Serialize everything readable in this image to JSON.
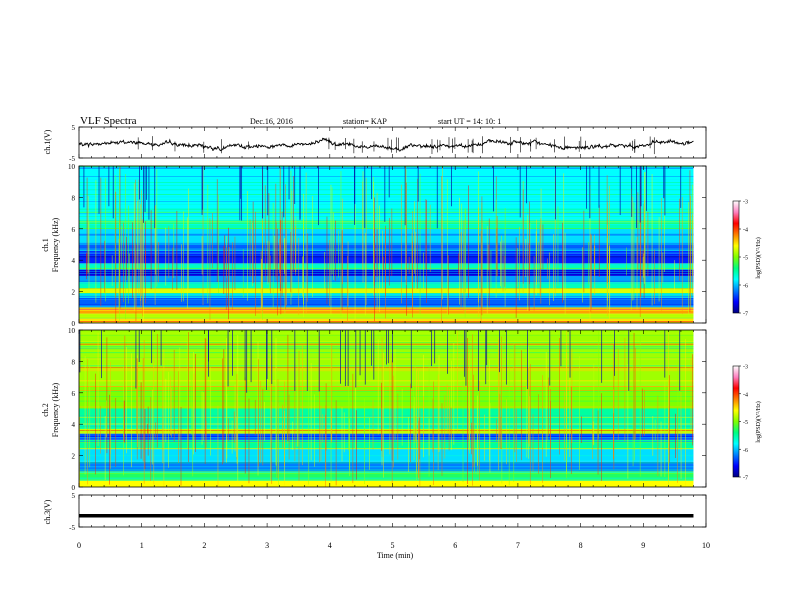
{
  "header": {
    "title": "VLF Spectra",
    "date": "Dec.16, 2016",
    "station": "station= KAP",
    "start": "start  UT =   14: 10: 1"
  },
  "chart_data": [
    {
      "type": "line",
      "name": "ch1-waveform",
      "ylabel": "ch.1(V)",
      "ylim": [
        -5,
        5
      ],
      "yticks": [
        "5",
        "-5"
      ],
      "xlim": [
        0,
        10
      ],
      "x_end": 9.8,
      "y_mean": -0.8,
      "y_spread": 1.2
    },
    {
      "type": "heatmap",
      "name": "ch1-spectrogram",
      "ylabel_line1": "ch.1",
      "ylabel_line2": "Frequency (kHz)",
      "ylim": [
        0,
        10
      ],
      "yticks": [
        "0",
        "2",
        "4",
        "6",
        "8",
        "10"
      ],
      "xlim": [
        0,
        10
      ],
      "x_end": 9.8,
      "bands": [
        {
          "f": [
            0.0,
            0.3
          ],
          "level": -4.5
        },
        {
          "f": [
            0.3,
            0.6
          ],
          "level": -4.8
        },
        {
          "f": [
            0.6,
            1.0
          ],
          "level": -4.3
        },
        {
          "f": [
            1.0,
            1.5
          ],
          "level": -6.3
        },
        {
          "f": [
            1.5,
            1.9
          ],
          "level": -5.9
        },
        {
          "f": [
            1.9,
            2.2
          ],
          "level": -4.7
        },
        {
          "f": [
            2.2,
            2.6
          ],
          "level": -5.6
        },
        {
          "f": [
            2.6,
            3.0
          ],
          "level": -6.1
        },
        {
          "f": [
            3.0,
            3.4
          ],
          "level": -6.7
        },
        {
          "f": [
            3.4,
            3.8
          ],
          "level": -5.6
        },
        {
          "f": [
            3.8,
            4.4
          ],
          "level": -6.5
        },
        {
          "f": [
            4.4,
            5.0
          ],
          "level": -6.3
        },
        {
          "f": [
            5.0,
            6.0
          ],
          "level": -5.9
        },
        {
          "f": [
            6.0,
            6.6
          ],
          "level": -5.6
        },
        {
          "f": [
            6.6,
            10.0
          ],
          "level": -5.8
        }
      ],
      "colorbar": {
        "label": "log(PSD)(V²/Hz)",
        "range": [
          -7,
          -3
        ],
        "ticks": [
          "-3",
          "-4",
          "-5",
          "-6",
          "-7"
        ]
      }
    },
    {
      "type": "heatmap",
      "name": "ch2-spectrogram",
      "ylabel_line1": "ch.2",
      "ylabel_line2": "Frequency (kHz)",
      "ylim": [
        0,
        10
      ],
      "yticks": [
        "0",
        "2",
        "4",
        "6",
        "8",
        "10"
      ],
      "xlim": [
        0,
        10
      ],
      "x_end": 9.8,
      "bands": [
        {
          "f": [
            0.0,
            0.4
          ],
          "level": -4.6
        },
        {
          "f": [
            0.4,
            1.0
          ],
          "level": -5.3
        },
        {
          "f": [
            1.0,
            1.6
          ],
          "level": -6.2
        },
        {
          "f": [
            1.6,
            2.4
          ],
          "level": -5.9
        },
        {
          "f": [
            2.4,
            3.0
          ],
          "level": -5.5
        },
        {
          "f": [
            3.0,
            3.4
          ],
          "level": -6.3
        },
        {
          "f": [
            3.4,
            3.7
          ],
          "level": -4.8
        },
        {
          "f": [
            3.7,
            5.0
          ],
          "level": -5.5
        },
        {
          "f": [
            5.0,
            6.5
          ],
          "level": -5.0
        },
        {
          "f": [
            6.5,
            10.0
          ],
          "level": -4.9
        }
      ],
      "colorbar": {
        "label": "log(PSD)(V²/Hz)",
        "range": [
          -7,
          -3
        ],
        "ticks": [
          "-3",
          "-4",
          "-5",
          "-6",
          "-7"
        ]
      }
    },
    {
      "type": "line",
      "name": "ch3-waveform",
      "ylabel": "ch.3(V)",
      "ylim": [
        -5,
        5
      ],
      "yticks": [
        "5",
        "-5"
      ],
      "xlim": [
        0,
        10
      ],
      "x_end": 9.8,
      "y_value": -1.5
    }
  ],
  "x_axis": {
    "xlabel": "Time (min)",
    "ticks": [
      "0",
      "1",
      "2",
      "3",
      "4",
      "5",
      "6",
      "7",
      "8",
      "9",
      "10"
    ]
  },
  "colors": {
    "colormap": [
      "#000080",
      "#0000ff",
      "#0080ff",
      "#00ffff",
      "#00ff80",
      "#80ff00",
      "#ffff00",
      "#ff8000",
      "#ff0000",
      "#ff80c0",
      "#ffffff"
    ],
    "trace": "#000000"
  }
}
